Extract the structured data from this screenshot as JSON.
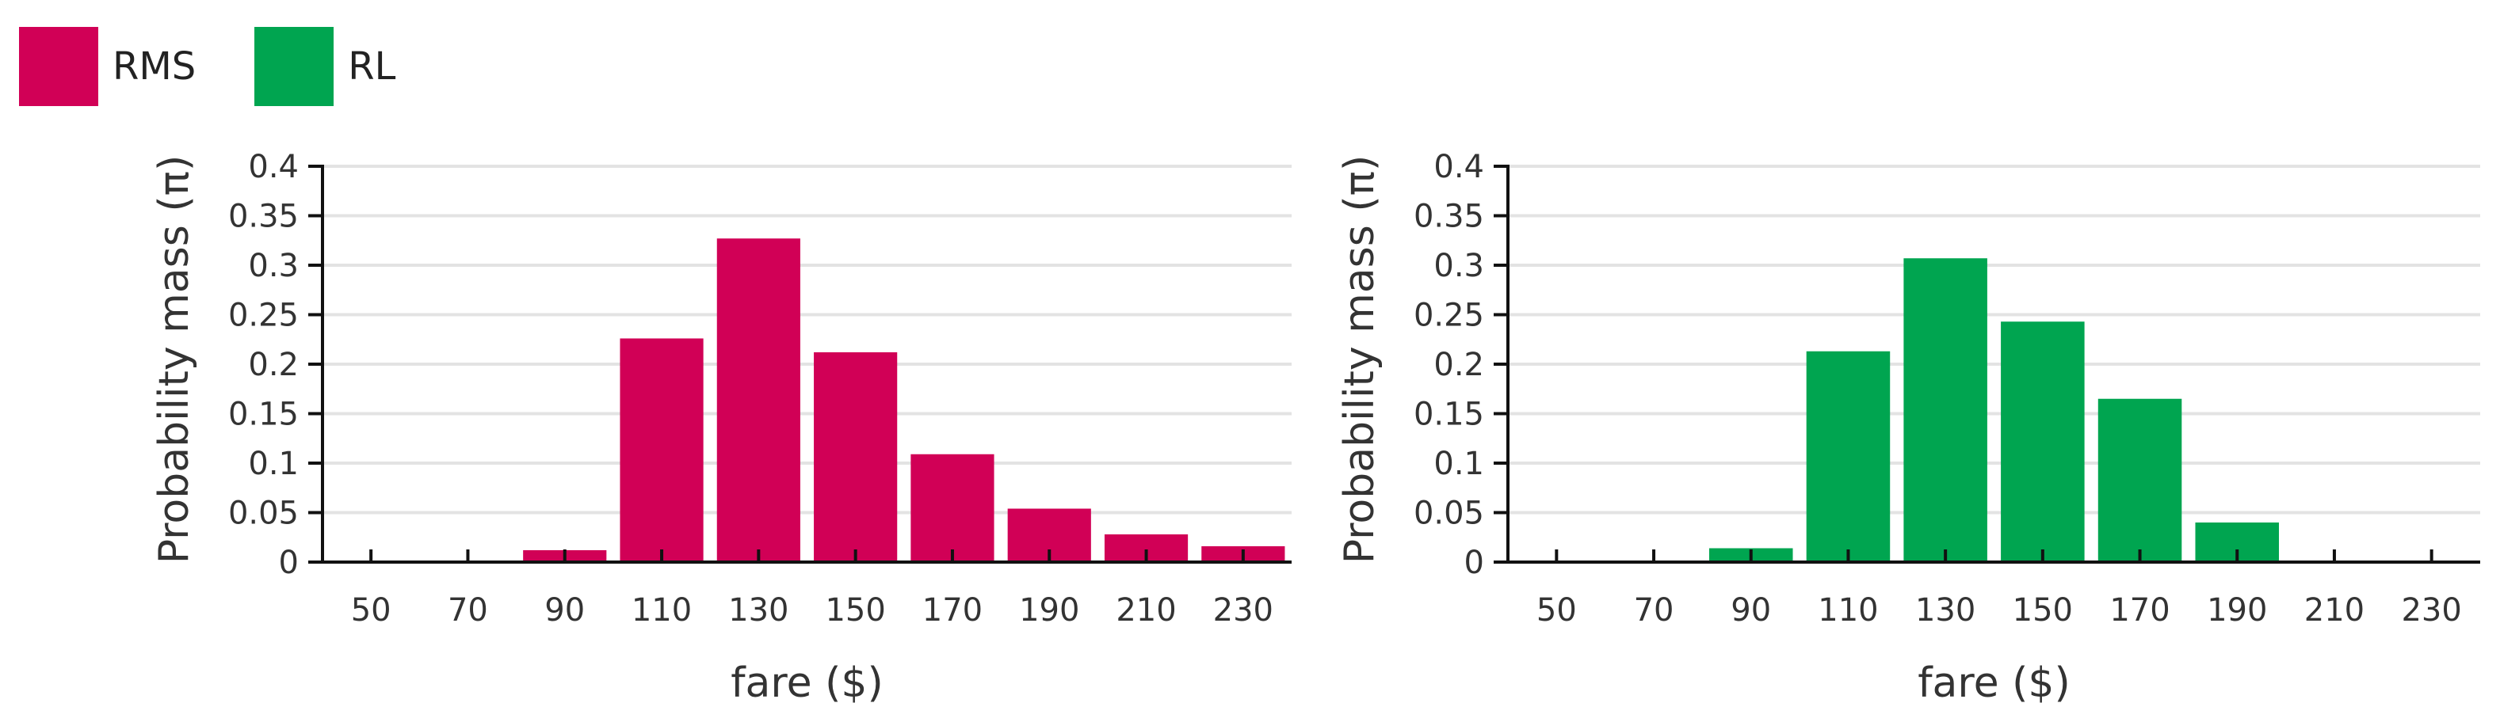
{
  "legend": {
    "items": [
      {
        "label": "RMS",
        "color": "#d10056"
      },
      {
        "label": "RL",
        "color": "#00a550"
      }
    ]
  },
  "chart_data": [
    {
      "type": "bar",
      "categories": [
        "50",
        "70",
        "90",
        "110",
        "130",
        "150",
        "170",
        "190",
        "210",
        "230"
      ],
      "series": [
        {
          "name": "RMS",
          "values": [
            0,
            0,
            0.012,
            0.226,
            0.327,
            0.212,
            0.109,
            0.054,
            0.028,
            0.016
          ],
          "color": "#d10056"
        }
      ],
      "title": "",
      "xlabel": "fare ($)",
      "ylabel": "Probability mass (π)",
      "ylim": [
        0,
        0.4
      ],
      "yticks": [
        "0",
        "0.05",
        "0.1",
        "0.15",
        "0.2",
        "0.25",
        "0.3",
        "0.35",
        "0.4"
      ],
      "grid": true
    },
    {
      "type": "bar",
      "categories": [
        "50",
        "70",
        "90",
        "110",
        "130",
        "150",
        "170",
        "190",
        "210",
        "230"
      ],
      "series": [
        {
          "name": "RL",
          "values": [
            0,
            0,
            0.014,
            0.213,
            0.307,
            0.243,
            0.165,
            0.04,
            0,
            0
          ],
          "color": "#00a550"
        }
      ],
      "title": "",
      "xlabel": "fare ($)",
      "ylabel": "Probability mass (π)",
      "ylim": [
        0,
        0.4
      ],
      "yticks": [
        "0",
        "0.05",
        "0.1",
        "0.15",
        "0.2",
        "0.25",
        "0.3",
        "0.35",
        "0.4"
      ],
      "grid": true
    }
  ]
}
